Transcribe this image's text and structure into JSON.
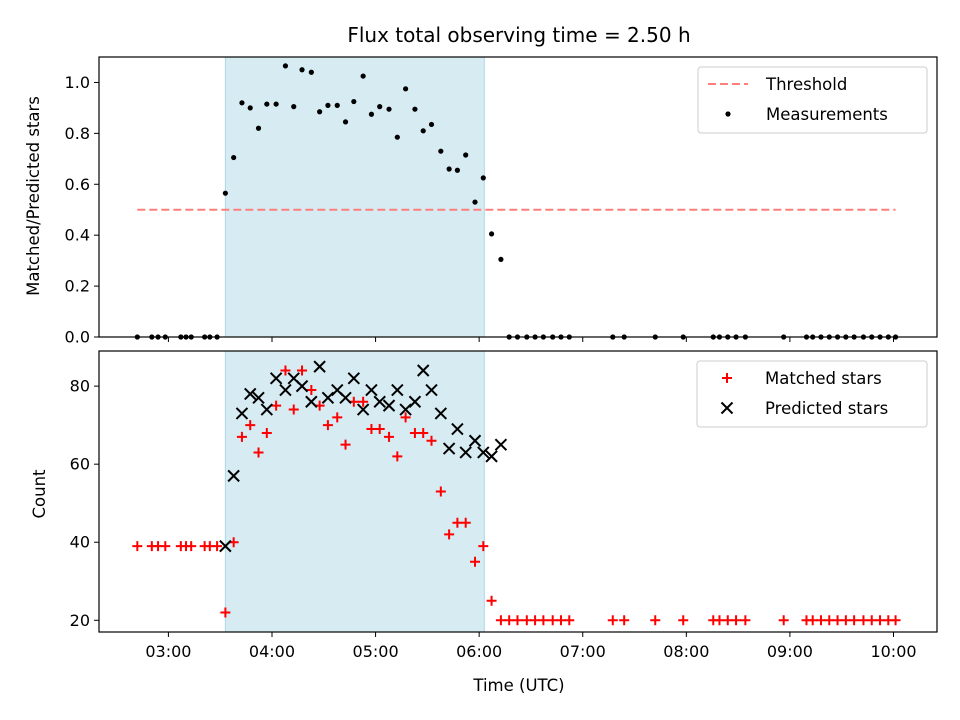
{
  "chart_data": {
    "type": "scatter",
    "title": "Flux total observing time = 2.50 h",
    "xlabel": "Time (UTC)",
    "x_ticks": [
      "03:00",
      "04:00",
      "05:00",
      "06:00",
      "07:00",
      "08:00",
      "09:00",
      "10:00"
    ],
    "x_tick_hours": [
      3,
      4,
      5,
      6,
      7,
      8,
      9,
      10
    ],
    "xlim": [
      2.33,
      10.42
    ],
    "shaded_span": [
      3.55,
      6.05
    ],
    "shade_color": "#add8e6",
    "panels": [
      {
        "ylabel": "Matched/Predicted stars",
        "ylim": [
          0,
          1.1
        ],
        "y_ticks": [
          0.0,
          0.2,
          0.4,
          0.6,
          0.8,
          1.0
        ],
        "y_tick_labels": [
          "0.0",
          "0.2",
          "0.4",
          "0.6",
          "0.8",
          "1.0"
        ],
        "legend_position": "top-right",
        "legend": [
          "Threshold",
          "Measurements"
        ],
        "threshold": {
          "name": "Threshold",
          "value": 0.5,
          "x_range": [
            2.7,
            10.02
          ],
          "color": "#ff7f7f"
        },
        "series": [
          {
            "name": "Measurements",
            "marker": "dot",
            "color": "#000000",
            "points": [
              [
                2.7,
                0.0
              ],
              [
                2.84,
                0.0
              ],
              [
                2.9,
                0.0
              ],
              [
                2.97,
                0.0
              ],
              [
                3.12,
                0.0
              ],
              [
                3.17,
                0.0
              ],
              [
                3.22,
                0.0
              ],
              [
                3.35,
                0.0
              ],
              [
                3.4,
                0.0
              ],
              [
                3.47,
                0.0
              ],
              [
                3.55,
                0.565
              ],
              [
                3.63,
                0.705
              ],
              [
                3.71,
                0.92
              ],
              [
                3.79,
                0.9
              ],
              [
                3.87,
                0.82
              ],
              [
                3.95,
                0.915
              ],
              [
                4.04,
                0.915
              ],
              [
                4.13,
                1.065
              ],
              [
                4.21,
                0.905
              ],
              [
                4.29,
                1.05
              ],
              [
                4.38,
                1.04
              ],
              [
                4.46,
                0.885
              ],
              [
                4.54,
                0.91
              ],
              [
                4.63,
                0.91
              ],
              [
                4.71,
                0.845
              ],
              [
                4.79,
                0.925
              ],
              [
                4.88,
                1.025
              ],
              [
                4.96,
                0.875
              ],
              [
                5.04,
                0.905
              ],
              [
                5.13,
                0.895
              ],
              [
                5.21,
                0.785
              ],
              [
                5.29,
                0.975
              ],
              [
                5.38,
                0.895
              ],
              [
                5.46,
                0.81
              ],
              [
                5.54,
                0.835
              ],
              [
                5.63,
                0.73
              ],
              [
                5.71,
                0.66
              ],
              [
                5.79,
                0.655
              ],
              [
                5.87,
                0.715
              ],
              [
                5.96,
                0.53
              ],
              [
                6.04,
                0.625
              ],
              [
                6.12,
                0.405
              ],
              [
                6.21,
                0.305
              ],
              [
                6.29,
                0.0
              ],
              [
                6.37,
                0.0
              ],
              [
                6.46,
                0.0
              ],
              [
                6.54,
                0.0
              ],
              [
                6.62,
                0.0
              ],
              [
                6.71,
                0.0
              ],
              [
                6.79,
                0.0
              ],
              [
                6.87,
                0.0
              ],
              [
                7.29,
                0.0
              ],
              [
                7.4,
                0.0
              ],
              [
                7.7,
                0.0
              ],
              [
                7.97,
                0.0
              ],
              [
                8.26,
                0.0
              ],
              [
                8.32,
                0.0
              ],
              [
                8.4,
                0.0
              ],
              [
                8.48,
                0.0
              ],
              [
                8.57,
                0.0
              ],
              [
                8.94,
                0.0
              ],
              [
                9.16,
                0.0
              ],
              [
                9.22,
                0.0
              ],
              [
                9.3,
                0.0
              ],
              [
                9.38,
                0.0
              ],
              [
                9.46,
                0.0
              ],
              [
                9.54,
                0.0
              ],
              [
                9.62,
                0.0
              ],
              [
                9.71,
                0.0
              ],
              [
                9.79,
                0.0
              ],
              [
                9.87,
                0.0
              ],
              [
                9.95,
                0.0
              ],
              [
                10.02,
                0.0
              ]
            ]
          }
        ]
      },
      {
        "ylabel": "Count",
        "ylim": [
          17,
          89
        ],
        "y_ticks": [
          20,
          40,
          60,
          80
        ],
        "y_tick_labels": [
          "20",
          "40",
          "60",
          "80"
        ],
        "legend_position": "top-right",
        "legend": [
          "Matched stars",
          "Predicted stars"
        ],
        "series": [
          {
            "name": "Matched stars",
            "marker": "plus",
            "color": "#ff0000",
            "points": [
              [
                2.7,
                39
              ],
              [
                2.84,
                39
              ],
              [
                2.9,
                39
              ],
              [
                2.97,
                39
              ],
              [
                3.12,
                39
              ],
              [
                3.17,
                39
              ],
              [
                3.22,
                39
              ],
              [
                3.35,
                39
              ],
              [
                3.4,
                39
              ],
              [
                3.47,
                39
              ],
              [
                3.55,
                22
              ],
              [
                3.63,
                40
              ],
              [
                3.71,
                67
              ],
              [
                3.79,
                70
              ],
              [
                3.87,
                63
              ],
              [
                3.95,
                68
              ],
              [
                4.04,
                75
              ],
              [
                4.13,
                84
              ],
              [
                4.21,
                74
              ],
              [
                4.29,
                84
              ],
              [
                4.38,
                79
              ],
              [
                4.46,
                75
              ],
              [
                4.54,
                70
              ],
              [
                4.63,
                72
              ],
              [
                4.71,
                65
              ],
              [
                4.79,
                76
              ],
              [
                4.88,
                76
              ],
              [
                4.96,
                69
              ],
              [
                5.04,
                69
              ],
              [
                5.13,
                67
              ],
              [
                5.21,
                62
              ],
              [
                5.29,
                72
              ],
              [
                5.38,
                68
              ],
              [
                5.46,
                68
              ],
              [
                5.54,
                66
              ],
              [
                5.63,
                53
              ],
              [
                5.71,
                42
              ],
              [
                5.79,
                45
              ],
              [
                5.87,
                45
              ],
              [
                5.96,
                35
              ],
              [
                6.04,
                39
              ],
              [
                6.12,
                25
              ],
              [
                6.21,
                20
              ],
              [
                6.29,
                20
              ],
              [
                6.37,
                20
              ],
              [
                6.46,
                20
              ],
              [
                6.54,
                20
              ],
              [
                6.62,
                20
              ],
              [
                6.71,
                20
              ],
              [
                6.79,
                20
              ],
              [
                6.87,
                20
              ],
              [
                7.29,
                20
              ],
              [
                7.4,
                20
              ],
              [
                7.7,
                20
              ],
              [
                7.97,
                20
              ],
              [
                8.26,
                20
              ],
              [
                8.32,
                20
              ],
              [
                8.4,
                20
              ],
              [
                8.48,
                20
              ],
              [
                8.57,
                20
              ],
              [
                8.94,
                20
              ],
              [
                9.16,
                20
              ],
              [
                9.22,
                20
              ],
              [
                9.3,
                20
              ],
              [
                9.38,
                20
              ],
              [
                9.46,
                20
              ],
              [
                9.54,
                20
              ],
              [
                9.62,
                20
              ],
              [
                9.71,
                20
              ],
              [
                9.79,
                20
              ],
              [
                9.87,
                20
              ],
              [
                9.95,
                20
              ],
              [
                10.02,
                20
              ]
            ]
          },
          {
            "name": "Predicted stars",
            "marker": "x",
            "color": "#000000",
            "points": [
              [
                3.55,
                39
              ],
              [
                3.63,
                57
              ],
              [
                3.71,
                73
              ],
              [
                3.79,
                78
              ],
              [
                3.87,
                77
              ],
              [
                3.95,
                74
              ],
              [
                4.04,
                82
              ],
              [
                4.13,
                79
              ],
              [
                4.21,
                82
              ],
              [
                4.29,
                80
              ],
              [
                4.38,
                76
              ],
              [
                4.46,
                85
              ],
              [
                4.54,
                77
              ],
              [
                4.63,
                79
              ],
              [
                4.71,
                77
              ],
              [
                4.79,
                82
              ],
              [
                4.88,
                74
              ],
              [
                4.96,
                79
              ],
              [
                5.04,
                76
              ],
              [
                5.13,
                75
              ],
              [
                5.21,
                79
              ],
              [
                5.29,
                74
              ],
              [
                5.38,
                76
              ],
              [
                5.46,
                84
              ],
              [
                5.54,
                79
              ],
              [
                5.63,
                73
              ],
              [
                5.71,
                64
              ],
              [
                5.79,
                69
              ],
              [
                5.87,
                63
              ],
              [
                5.96,
                66
              ],
              [
                6.04,
                63
              ],
              [
                6.12,
                62
              ],
              [
                6.21,
                65
              ]
            ]
          }
        ]
      }
    ]
  }
}
